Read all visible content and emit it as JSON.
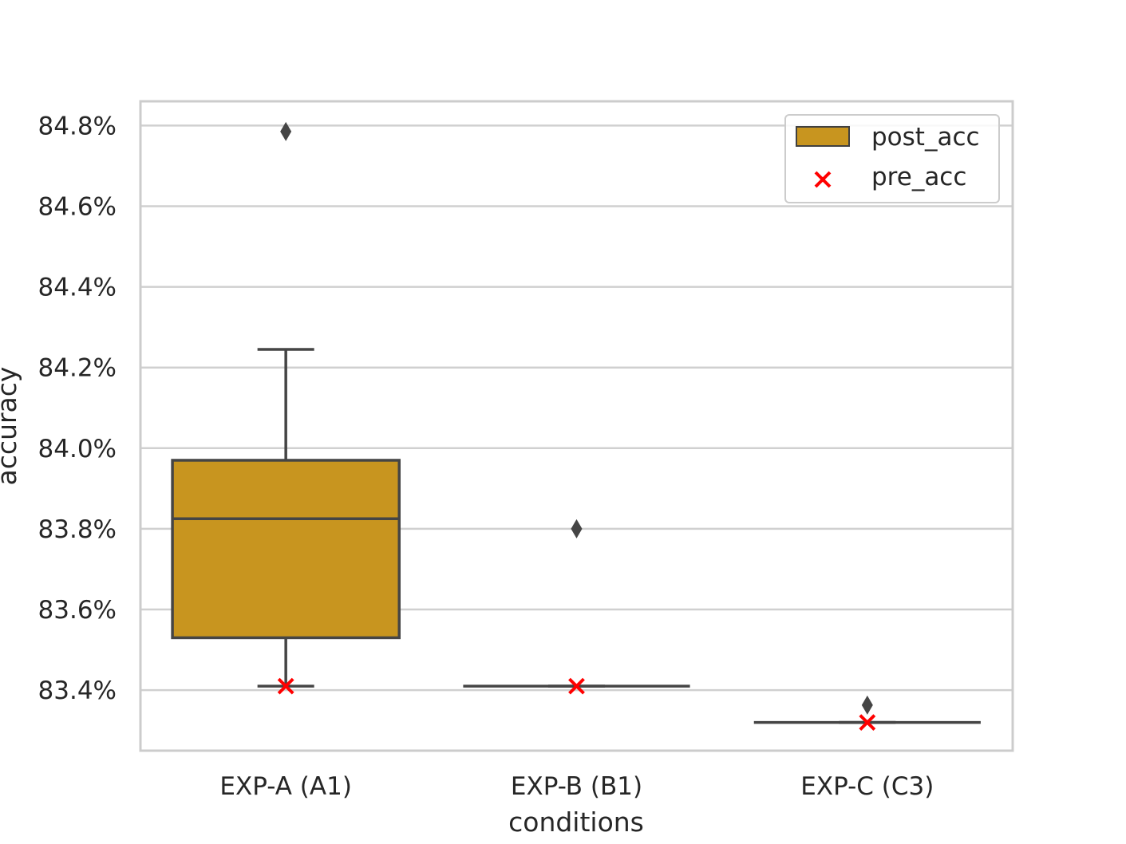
{
  "chart_data": {
    "type": "box",
    "xlabel": "conditions",
    "ylabel": "accuracy",
    "ylim": [
      83.25,
      84.86
    ],
    "yticks": [
      83.4,
      83.6,
      83.8,
      84.0,
      84.2,
      84.4,
      84.6,
      84.8
    ],
    "ytick_labels": [
      "83.4%",
      "83.6%",
      "83.8%",
      "84.0%",
      "84.2%",
      "84.4%",
      "84.6%",
      "84.8%"
    ],
    "grid": true,
    "legend_position": "top-right",
    "categories": [
      "EXP-A (A1)",
      "EXP-B (B1)",
      "EXP-C (C3)"
    ],
    "series": [
      {
        "name": "post_acc",
        "kind": "box",
        "color": "#c8951f",
        "boxes": [
          {
            "whisker_low": 83.41,
            "q1": 83.53,
            "median": 83.825,
            "q3": 83.97,
            "whisker_high": 84.245,
            "outliers": [
              84.785
            ]
          },
          {
            "whisker_low": 83.41,
            "q1": 83.41,
            "median": 83.41,
            "q3": 83.41,
            "whisker_high": 83.41,
            "outliers": [
              83.8
            ]
          },
          {
            "whisker_low": 83.32,
            "q1": 83.32,
            "median": 83.32,
            "q3": 83.32,
            "whisker_high": 83.32,
            "outliers": [
              83.363
            ]
          }
        ]
      },
      {
        "name": "pre_acc",
        "kind": "marker",
        "marker": "x",
        "color": "#ff0000",
        "values": [
          83.41,
          83.41,
          83.32
        ]
      }
    ]
  }
}
